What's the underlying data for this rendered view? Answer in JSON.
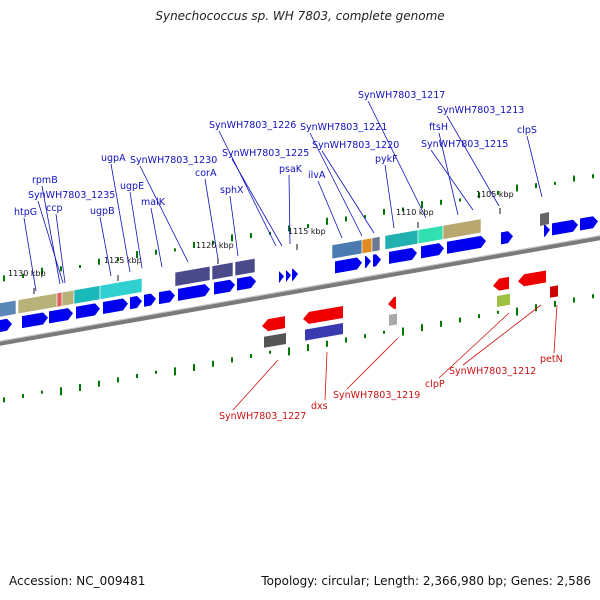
{
  "title": "Synechococcus sp. WH 7803, complete genome",
  "accession": "Accession: NC_009481",
  "summary": "Topology: circular; Length: 2,366,980 bp; Genes: 2,586",
  "colors": {
    "forward_label": "#1111bb",
    "reverse_label": "#cc1111",
    "forward_cds": "#0000ee",
    "reverse_cds": "#ee0000",
    "backbone": "#888888",
    "gc_tick": "#007700"
  },
  "scale_labels": [
    "1130 kbp",
    "1125 kbp",
    "1120 kbp",
    "1115 kbp",
    "1110 kbp",
    "1105 kbp"
  ],
  "forward_labels": [
    "htpG",
    "rpmB",
    "SynWH7803_1235",
    "ccp",
    "ugpB",
    "ugpA",
    "ugpE",
    "SynWH7803_1230",
    "malK",
    "corA",
    "sphX",
    "SynWH7803_1226",
    "SynWH7803_1225",
    "psaK",
    "SynWH7803_1221",
    "ilvA",
    "SynWH7803_1220",
    "SynWH7803_1217",
    "pykF",
    "ftsH",
    "SynWH7803_1213",
    "SynWH7803_1215",
    "clpS"
  ],
  "reverse_labels": [
    "SynWH7803_1227",
    "dxs",
    "SynWH7803_1219",
    "clpP",
    "SynWH7803_1212",
    "petN"
  ]
}
